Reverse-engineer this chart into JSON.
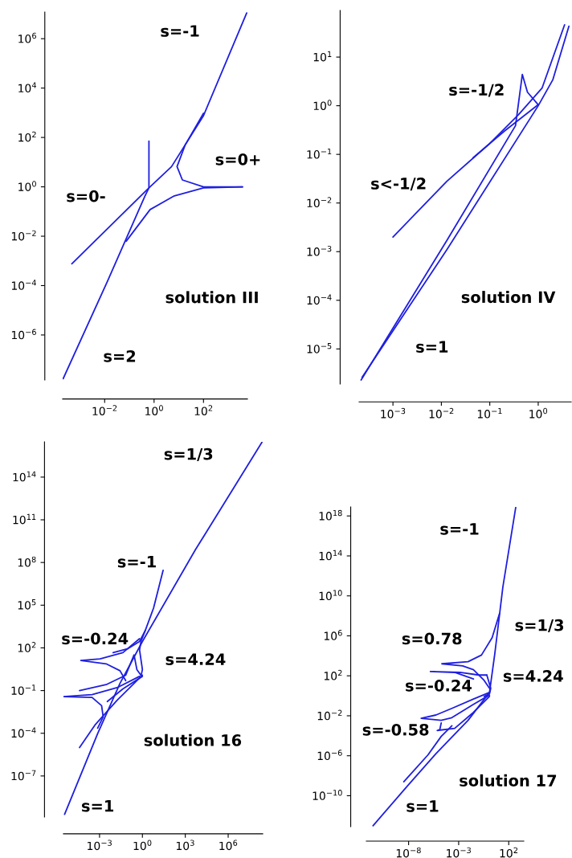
{
  "chart_data": [
    {
      "type": "line",
      "log": "xy",
      "xlim": [
        0.0002,
        6000.0
      ],
      "ylim": [
        1.5e-08,
        12000000.0
      ],
      "xticks": [
        {
          "value": 0.01,
          "label": "10$^{−2}$"
        },
        {
          "value": 1,
          "label": "10$^{0}$"
        },
        {
          "value": 100,
          "label": "10$^{2}$"
        }
      ],
      "yticks": [
        {
          "value": 1e-06,
          "label": "10$^{−6}$"
        },
        {
          "value": 0.0001,
          "label": "10$^{−4}$"
        },
        {
          "value": 0.01,
          "label": "10$^{−2}$"
        },
        {
          "value": 1,
          "label": "10$^{0}$"
        },
        {
          "value": 100,
          "label": "10$^{2}$"
        },
        {
          "value": 10000.0,
          "label": "10$^{4}$"
        },
        {
          "value": 1000000.0,
          "label": "10$^{6}$"
        }
      ],
      "series": [
        {
          "color": "#1f1fe0",
          "x": [
            0.00047,
            0.62,
            5.1,
            100,
            5600
          ],
          "values": [
            0.00076,
            0.91,
            6.6,
            760,
            11000000.0
          ]
        },
        {
          "color": "#1f1fe0",
          "x": [
            0.00021,
            0.013,
            0.43,
            0.62,
            0.62
          ],
          "values": [
            1.7e-08,
            0.00015,
            0.43,
            0.91,
            71
          ]
        },
        {
          "color": "#1f1fe0",
          "x": [
            0.074,
            0.69,
            6.6,
            100,
            3800
          ],
          "values": [
            0.0062,
            0.12,
            0.43,
            0.91,
            1.0
          ]
        },
        {
          "color": "#1f1fe0",
          "x": [
            3800,
            100,
            14,
            8.5,
            18,
            100
          ],
          "values": [
            1.0,
            1.0,
            1.9,
            6.6,
            49,
            950
          ]
        }
      ],
      "annotations": [
        "s=-1",
        "s=0+",
        "s=0-",
        "solution III",
        "s=2"
      ]
    },
    {
      "type": "line",
      "log": "xy",
      "xlim": [
        0.0002,
        4.8
      ],
      "ylim": [
        1.9e-06,
        91
      ],
      "xticks": [
        {
          "value": 0.001,
          "label": "10$^{−3}$"
        },
        {
          "value": 0.01,
          "label": "10$^{−2}$"
        },
        {
          "value": 0.1,
          "label": "10$^{−1}$"
        },
        {
          "value": 1,
          "label": "10$^{0}$"
        }
      ],
      "yticks": [
        {
          "value": 1e-05,
          "label": "10$^{−5}$"
        },
        {
          "value": 0.0001,
          "label": "10$^{−4}$"
        },
        {
          "value": 0.001,
          "label": "10$^{−3}$"
        },
        {
          "value": 0.01,
          "label": "10$^{−2}$"
        },
        {
          "value": 0.1,
          "label": "10$^{−1}$"
        },
        {
          "value": 1,
          "label": "10$^{0}$"
        },
        {
          "value": 10,
          "label": "10$^{1}$"
        }
      ],
      "series": [
        {
          "color": "#1f1fe0",
          "x": [
            0.001,
            0.013,
            0.095,
            0.39,
            1.2,
            3.5
          ],
          "values": [
            0.002,
            0.028,
            0.16,
            0.65,
            2.3,
            46
          ]
        },
        {
          "color": "#1f1fe0",
          "x": [
            0.045,
            0.2,
            1.0
          ],
          "values": [
            0.085,
            0.3,
            1.05
          ]
        },
        {
          "color": "#1f1fe0",
          "x": [
            0.00022,
            0.013,
            0.34,
            0.47,
            0.6,
            1.0
          ],
          "values": [
            2.3e-06,
            0.0017,
            0.39,
            4.4,
            1.9,
            1.05
          ]
        },
        {
          "color": "#1f1fe0",
          "x": [
            0.00023,
            0.013,
            1.0,
            2.0,
            4.3
          ],
          "values": [
            2.6e-06,
            0.0011,
            1.0,
            3.4,
            43
          ]
        }
      ],
      "annotations": [
        "s=-1/2",
        "s<-1/2",
        "solution IV",
        "s=1"
      ]
    },
    {
      "type": "line",
      "log": "xy",
      "xlim": [
        3e-06,
        260000000.0
      ],
      "ylim": [
        1.3e-10,
        3e+16
      ],
      "xticks": [
        {
          "value": 0.001,
          "label": "10$^{−3}$"
        },
        {
          "value": 1,
          "label": "10$^{0}$"
        },
        {
          "value": 1000,
          "label": "10$^{3}$"
        },
        {
          "value": 1000000.0,
          "label": "10$^{6}$"
        }
      ],
      "yticks": [
        {
          "value": 1e-07,
          "label": "10$^{−7}$"
        },
        {
          "value": 0.0001,
          "label": "10$^{−4}$"
        },
        {
          "value": 0.1,
          "label": "10$^{−1}$"
        },
        {
          "value": 100,
          "label": "10$^{2}$"
        },
        {
          "value": 100000.0,
          "label": "10$^{5}$"
        },
        {
          "value": 100000000.0,
          "label": "10$^{8}$"
        },
        {
          "value": 100000000000.0,
          "label": "10$^{11}$"
        },
        {
          "value": 100000000000000.0,
          "label": "10$^{14}$"
        }
      ],
      "series": [
        {
          "color": "#1f1fe0",
          "x": [
            3.6e-06,
            0.00074,
            0.027,
            1,
            5200,
            230000000.0
          ],
          "values": [
            2e-10,
            9.5e-05,
            0.32,
            280,
            810000000.0,
            2.8e+16
          ]
        },
        {
          "color": "#1f1fe0",
          "x": [
            28,
            6.0,
            1.6,
            0.79,
            0.63,
            1,
            0.79
          ],
          "values": [
            28000000.0,
            62000.0,
            1700,
            280,
            72,
            3.0,
            1.0
          ]
        },
        {
          "color": "#1f1fe0",
          "x": [
            0.0089,
            0.1,
            0.63,
            1.6
          ],
          "values": [
            46,
            89,
            280,
            1700
          ]
        },
        {
          "color": "#1f1fe0",
          "x": [
            0.63,
            0.043,
            0.0011,
            4.9e-05,
            0.0029,
            0.027,
            0.068
          ],
          "values": [
            440,
            46,
            17,
            13,
            7.6,
            2.5,
            0.5
          ]
        },
        {
          "color": "#1f1fe0",
          "x": [
            4e-05,
            0.0029,
            0.068,
            0.26,
            0.41,
            0.79
          ],
          "values": [
            0.1,
            0.26,
            1.2,
            32,
            3.0,
            1.2
          ]
        },
        {
          "color": "#1f1fe0",
          "x": [
            0.63,
            0.017,
            0.0003,
            3e-06,
            0.0003,
            0.0014,
            0.0018,
            0.00074
          ],
          "values": [
            1.0,
            0.16,
            0.052,
            0.038,
            0.033,
            0.0087,
            0.0014,
            0.00023
          ]
        },
        {
          "color": "#1f1fe0",
          "x": [
            4e-05,
            0.00047,
            0.017,
            1
          ],
          "values": [
            1e-05,
            0.00037,
            0.021,
            1.2
          ]
        },
        {
          "color": "#1f1fe0",
          "x": [
            0.0035,
            0.043,
            1
          ],
          "values": [
            0.017,
            0.13,
            1.0
          ]
        }
      ],
      "annotations": [
        "s=1/3",
        "s=-1",
        "s=-0.24",
        "s=4.24",
        "solution 16",
        "s=1"
      ]
    },
    {
      "type": "line",
      "log": "xy",
      "xlim": [
        6e-13,
        3200
      ],
      "ylim": [
        8e-14,
        8e+18
      ],
      "xticks": [
        {
          "value": 1e-08,
          "label": "10$^{−8}$"
        },
        {
          "value": 0.001,
          "label": "10$^{−3}$"
        },
        {
          "value": 100,
          "label": "10$^{2}$"
        }
      ],
      "yticks": [
        {
          "value": 1e-10,
          "label": "10$^{−10}$"
        },
        {
          "value": 1e-06,
          "label": "10$^{−6}$"
        },
        {
          "value": 0.01,
          "label": "10$^{−2}$"
        },
        {
          "value": 100,
          "label": "10$^{2}$"
        },
        {
          "value": 1000000.0,
          "label": "10$^{6}$"
        },
        {
          "value": 10000000000.0,
          "label": "10$^{10}$"
        },
        {
          "value": 100000000000000.0,
          "label": "10$^{14}$"
        },
        {
          "value": 1e+18,
          "label": "10$^{18}$"
        }
      ],
      "series": [
        {
          "color": "#1f1fe0",
          "x": [
            2.8e-12,
            6.2e-09,
            5.4e-06,
            0.0087,
            1.2,
            4.1,
            26,
            500
          ],
          "values": [
            1e-13,
            7.4e-10,
            1.6e-06,
            0.0035,
            2.2,
            17000.0,
            78000000000.0,
            7.1e+18
          ]
        },
        {
          "color": "#1f1fe0",
          "x": [
            12,
            2.2,
            0.19,
            0.0087,
            2.1e-05,
            0.0025,
            0.03,
            0.35,
            1.2
          ],
          "values": [
            170000000.0,
            660000.0,
            12000.0,
            2600,
            1600,
            1000,
            410,
            35,
            5.6
          ]
        },
        {
          "color": "#1f1fe0",
          "x": [
            0.03,
            0.0004,
            1.5e-06,
            0.0013,
            0.1,
            0.65
          ],
          "values": [
            48,
            220,
            270,
            220,
            120,
            120
          ]
        },
        {
          "color": "#1f1fe0",
          "x": [
            0.65,
            1.6,
            1.2,
            0.35
          ],
          "values": [
            120,
            5.6,
            1.6,
            0.87
          ]
        },
        {
          "color": "#1f1fe0",
          "x": [
            1.2,
            0.03,
            0.00021,
            5.4e-06,
            1.8e-07,
            1.8e-05,
            0.00021,
            0.03,
            1.2
          ],
          "values": [
            2.2,
            0.48,
            0.055,
            0.012,
            0.0056,
            0.0035,
            0.0065,
            0.14,
            1.2
          ]
        },
        {
          "color": "#1f1fe0",
          "x": [
            1.8e-05,
            1.3e-05,
            7.2e-06,
            0.0004,
            0.03,
            1.2
          ],
          "values": [
            0.0019,
            0.00041,
            0.00034,
            0.00055,
            0.022,
            0.87
          ]
        },
        {
          "color": "#1f1fe0",
          "x": [
            3.3e-09,
            8.5e-07,
            1.8e-05,
            0.00021
          ],
          "values": [
            2.5e-09,
            1.2e-06,
            8.7e-05,
            0.001
          ]
        }
      ],
      "annotations": [
        "s=-1",
        "s=1/3",
        "s=0.78",
        "s=4.24",
        "s=-0.24",
        "s=-0.58",
        "solution 17",
        "s=1"
      ]
    }
  ]
}
